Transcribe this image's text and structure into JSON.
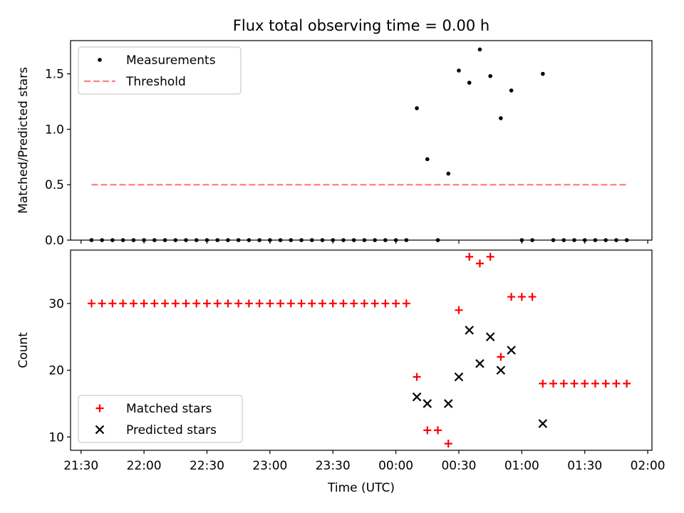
{
  "chart_data": [
    {
      "type": "scatter",
      "title": "Flux total observing time = 0.00 h",
      "xlabel": "",
      "ylabel": "Matched/Predicted stars",
      "xlim": [
        "21:25",
        "02:02"
      ],
      "ylim": [
        0,
        1.8
      ],
      "yticks": [
        "0.0",
        "0.5",
        "1.0",
        "1.5"
      ],
      "legend_position": "upper-left",
      "series": [
        {
          "name": "Measurements",
          "marker": "dot",
          "color": "#000000",
          "points": [
            [
              "21:35",
              0
            ],
            [
              "21:40",
              0
            ],
            [
              "21:45",
              0
            ],
            [
              "21:50",
              0
            ],
            [
              "21:55",
              0
            ],
            [
              "22:00",
              0
            ],
            [
              "22:05",
              0
            ],
            [
              "22:10",
              0
            ],
            [
              "22:15",
              0
            ],
            [
              "22:20",
              0
            ],
            [
              "22:25",
              0
            ],
            [
              "22:30",
              0
            ],
            [
              "22:35",
              0
            ],
            [
              "22:40",
              0
            ],
            [
              "22:45",
              0
            ],
            [
              "22:50",
              0
            ],
            [
              "22:55",
              0
            ],
            [
              "23:00",
              0
            ],
            [
              "23:05",
              0
            ],
            [
              "23:10",
              0
            ],
            [
              "23:15",
              0
            ],
            [
              "23:20",
              0
            ],
            [
              "23:25",
              0
            ],
            [
              "23:30",
              0
            ],
            [
              "23:35",
              0
            ],
            [
              "23:40",
              0
            ],
            [
              "23:45",
              0
            ],
            [
              "23:50",
              0
            ],
            [
              "23:55",
              0
            ],
            [
              "00:00",
              0
            ],
            [
              "00:05",
              0
            ],
            [
              "00:10",
              1.19
            ],
            [
              "00:15",
              0.73
            ],
            [
              "00:20",
              0
            ],
            [
              "00:25",
              0.6
            ],
            [
              "00:30",
              1.53
            ],
            [
              "00:35",
              1.42
            ],
            [
              "00:40",
              1.72
            ],
            [
              "00:45",
              1.48
            ],
            [
              "00:50",
              1.1
            ],
            [
              "00:55",
              1.35
            ],
            [
              "01:00",
              0
            ],
            [
              "01:05",
              0
            ],
            [
              "01:10",
              1.5
            ],
            [
              "01:15",
              0
            ],
            [
              "01:20",
              0
            ],
            [
              "01:25",
              0
            ],
            [
              "01:30",
              0
            ],
            [
              "01:35",
              0
            ],
            [
              "01:40",
              0
            ],
            [
              "01:45",
              0
            ],
            [
              "01:50",
              0
            ]
          ]
        },
        {
          "name": "Threshold",
          "marker": "dashed-line",
          "color": "#ff7f7f",
          "points": [
            [
              "21:35",
              0.5
            ],
            [
              "01:50",
              0.5
            ]
          ]
        }
      ]
    },
    {
      "type": "scatter",
      "title": "",
      "xlabel": "Time (UTC)",
      "ylabel": "Count",
      "xlim": [
        "21:25",
        "02:02"
      ],
      "ylim": [
        8,
        38
      ],
      "yticks": [
        "10",
        "20",
        "30"
      ],
      "xticks": [
        "21:30",
        "22:00",
        "22:30",
        "23:00",
        "23:30",
        "00:00",
        "00:30",
        "01:00",
        "01:30",
        "02:00"
      ],
      "legend_position": "lower-left",
      "series": [
        {
          "name": "Matched stars",
          "marker": "plus",
          "color": "#ff0000",
          "points": [
            [
              "21:35",
              30
            ],
            [
              "21:40",
              30
            ],
            [
              "21:45",
              30
            ],
            [
              "21:50",
              30
            ],
            [
              "21:55",
              30
            ],
            [
              "22:00",
              30
            ],
            [
              "22:05",
              30
            ],
            [
              "22:10",
              30
            ],
            [
              "22:15",
              30
            ],
            [
              "22:20",
              30
            ],
            [
              "22:25",
              30
            ],
            [
              "22:30",
              30
            ],
            [
              "22:35",
              30
            ],
            [
              "22:40",
              30
            ],
            [
              "22:45",
              30
            ],
            [
              "22:50",
              30
            ],
            [
              "22:55",
              30
            ],
            [
              "23:00",
              30
            ],
            [
              "23:05",
              30
            ],
            [
              "23:10",
              30
            ],
            [
              "23:15",
              30
            ],
            [
              "23:20",
              30
            ],
            [
              "23:25",
              30
            ],
            [
              "23:30",
              30
            ],
            [
              "23:35",
              30
            ],
            [
              "23:40",
              30
            ],
            [
              "23:45",
              30
            ],
            [
              "23:50",
              30
            ],
            [
              "23:55",
              30
            ],
            [
              "00:00",
              30
            ],
            [
              "00:05",
              30
            ],
            [
              "00:10",
              19
            ],
            [
              "00:15",
              11
            ],
            [
              "00:20",
              11
            ],
            [
              "00:25",
              9
            ],
            [
              "00:30",
              29
            ],
            [
              "00:35",
              37
            ],
            [
              "00:40",
              36
            ],
            [
              "00:45",
              37
            ],
            [
              "00:50",
              22
            ],
            [
              "00:55",
              31
            ],
            [
              "01:00",
              31
            ],
            [
              "01:05",
              31
            ],
            [
              "01:10",
              18
            ],
            [
              "01:15",
              18
            ],
            [
              "01:20",
              18
            ],
            [
              "01:25",
              18
            ],
            [
              "01:30",
              18
            ],
            [
              "01:35",
              18
            ],
            [
              "01:40",
              18
            ],
            [
              "01:45",
              18
            ],
            [
              "01:50",
              18
            ]
          ]
        },
        {
          "name": "Predicted stars",
          "marker": "x",
          "color": "#000000",
          "points": [
            [
              "00:10",
              16
            ],
            [
              "00:15",
              15
            ],
            [
              "00:25",
              15
            ],
            [
              "00:30",
              19
            ],
            [
              "00:35",
              26
            ],
            [
              "00:40",
              21
            ],
            [
              "00:45",
              25
            ],
            [
              "00:50",
              20
            ],
            [
              "00:55",
              23
            ],
            [
              "01:10",
              12
            ]
          ]
        }
      ]
    }
  ]
}
